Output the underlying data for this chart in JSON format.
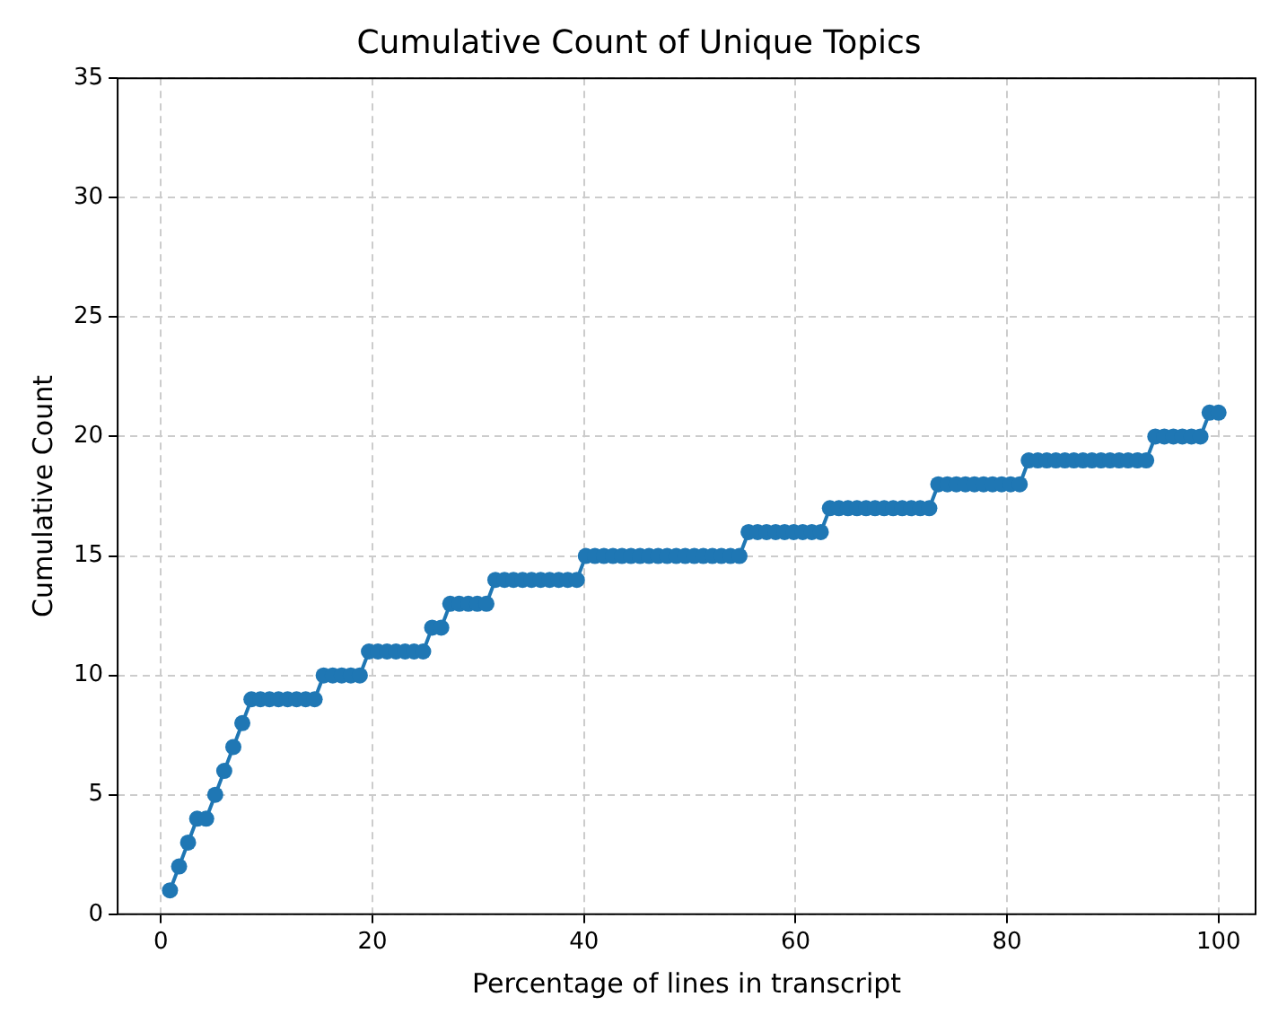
{
  "chart_data": {
    "type": "line",
    "title": "Cumulative Count of Unique Topics",
    "xlabel": "Percentage of lines in transcript",
    "ylabel": "Cumulative Count",
    "x": [
      0.85,
      1.71,
      2.56,
      3.42,
      4.27,
      5.13,
      5.98,
      6.84,
      7.69,
      8.55,
      9.4,
      10.26,
      11.11,
      11.97,
      12.82,
      13.68,
      14.53,
      15.38,
      16.24,
      17.09,
      17.95,
      18.8,
      19.66,
      20.51,
      21.37,
      22.22,
      23.08,
      23.93,
      24.79,
      25.64,
      26.5,
      27.35,
      28.21,
      29.06,
      29.91,
      30.77,
      31.62,
      32.48,
      33.33,
      34.19,
      35.04,
      35.9,
      36.75,
      37.61,
      38.46,
      39.32,
      40.17,
      41.03,
      41.88,
      42.74,
      43.59,
      44.44,
      45.3,
      46.15,
      47.01,
      47.86,
      48.72,
      49.57,
      50.43,
      51.28,
      52.14,
      52.99,
      53.85,
      54.7,
      55.56,
      56.41,
      57.26,
      58.12,
      58.97,
      59.83,
      60.68,
      61.54,
      62.39,
      63.25,
      64.1,
      64.96,
      65.81,
      66.67,
      67.52,
      68.38,
      69.23,
      70.09,
      70.94,
      71.79,
      72.65,
      73.5,
      74.36,
      75.21,
      76.07,
      76.92,
      77.78,
      78.63,
      79.49,
      80.34,
      81.2,
      82.05,
      82.91,
      83.76,
      84.62,
      85.47,
      86.32,
      87.18,
      88.03,
      88.89,
      89.74,
      90.6,
      91.45,
      92.31,
      93.16,
      94.02,
      94.87,
      95.73,
      96.58,
      97.44,
      98.29,
      99.15,
      100
    ],
    "series": [
      {
        "color": "#1f77b4",
        "values": [
          1,
          2,
          3,
          4,
          4,
          5,
          6,
          7,
          8,
          9,
          9,
          9,
          9,
          9,
          9,
          9,
          9,
          10,
          10,
          10,
          10,
          10,
          11,
          11,
          11,
          11,
          11,
          11,
          11,
          12,
          12,
          13,
          13,
          13,
          13,
          13,
          14,
          14,
          14,
          14,
          14,
          14,
          14,
          14,
          14,
          14,
          15,
          15,
          15,
          15,
          15,
          15,
          15,
          15,
          15,
          15,
          15,
          15,
          15,
          15,
          15,
          15,
          15,
          15,
          16,
          16,
          16,
          16,
          16,
          16,
          16,
          16,
          16,
          17,
          17,
          17,
          17,
          17,
          17,
          17,
          17,
          17,
          17,
          17,
          17,
          18,
          18,
          18,
          18,
          18,
          18,
          18,
          18,
          18,
          18,
          19,
          19,
          19,
          19,
          19,
          19,
          19,
          19,
          19,
          19,
          19,
          19,
          19,
          19,
          20,
          20,
          20,
          20,
          20,
          20,
          21,
          21
        ]
      }
    ],
    "xlim": [
      -4.1,
      103.5
    ],
    "ylim": [
      0,
      35
    ],
    "xticks": [
      0,
      20,
      40,
      60,
      80,
      100
    ],
    "yticks": [
      0,
      5,
      10,
      15,
      20,
      25,
      30,
      35
    ],
    "grid": true,
    "marker": "circle",
    "line_style": "solid"
  }
}
